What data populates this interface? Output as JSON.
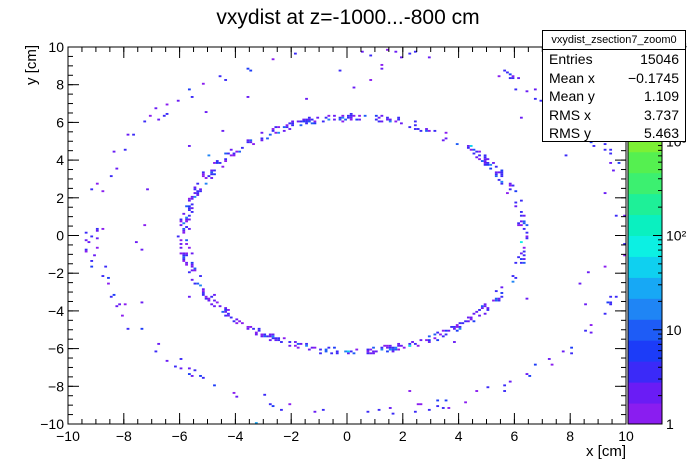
{
  "chart_data": {
    "type": "heatmap",
    "title": "vxydist at z=-1000...-800 cm",
    "xlabel": "x [cm]",
    "ylabel": "y [cm]",
    "xlim": [
      -10,
      10
    ],
    "ylim": [
      -10,
      10
    ],
    "x_ticks": [
      "−10",
      "−8",
      "−6",
      "−4",
      "−2",
      "0",
      "2",
      "4",
      "6",
      "8",
      "10"
    ],
    "y_ticks": [
      "−10",
      "−8",
      "−6",
      "−4",
      "−2",
      "0",
      "2",
      "4",
      "6",
      "8",
      "10"
    ],
    "colorbar": {
      "scale": "log",
      "range": [
        1,
        10000
      ],
      "tick_labels": [
        "1",
        "10",
        "10²",
        "10³",
        "10⁴"
      ],
      "palette": [
        "#8a1df0",
        "#6a1cf5",
        "#3b2af8",
        "#1c3cf8",
        "#1e5cf6",
        "#1f85f5",
        "#17a8f5",
        "#0fd0f0",
        "#0cf0e3",
        "#0af0c0",
        "#1ef098",
        "#3cf070",
        "#55f050",
        "#7cf035",
        "#a8f02a",
        "#d0f025",
        "#eef020",
        "#ffe81a"
      ]
    },
    "rings": [
      {
        "name": "inner",
        "cx": 0.25,
        "cy": 0.05,
        "rx": 6.1,
        "ry": 6.2
      },
      {
        "name": "outer",
        "cx": 0.6,
        "cy": 0.2,
        "rx": 9.7,
        "ry": 9.6
      }
    ],
    "hotspots": [
      {
        "x": 4.4,
        "y": 4.7,
        "count": 40
      },
      {
        "x": 6.3,
        "y": -0.4,
        "count": 60
      },
      {
        "x": 0.0,
        "y": -6.2,
        "count": 50
      },
      {
        "x": 2.2,
        "y": -5.9,
        "count": 60
      },
      {
        "x": -3.3,
        "y": -10.0,
        "count": 30
      },
      {
        "x": -5.0,
        "y": 4.2,
        "count": 15
      },
      {
        "x": 1.5,
        "y": -6.1,
        "count": 20
      }
    ],
    "stats": {
      "name": "vxydist_zsection7_zoom0",
      "entries": "15046",
      "mean_x": "−0.1745",
      "mean_y": "1.109",
      "rms_x": "3.737",
      "rms_y": "5.463"
    },
    "stats_labels": {
      "entries": "Entries",
      "mean_x": "Mean x",
      "mean_y": "Mean y",
      "rms_x": "RMS x",
      "rms_y": "RMS y"
    }
  }
}
